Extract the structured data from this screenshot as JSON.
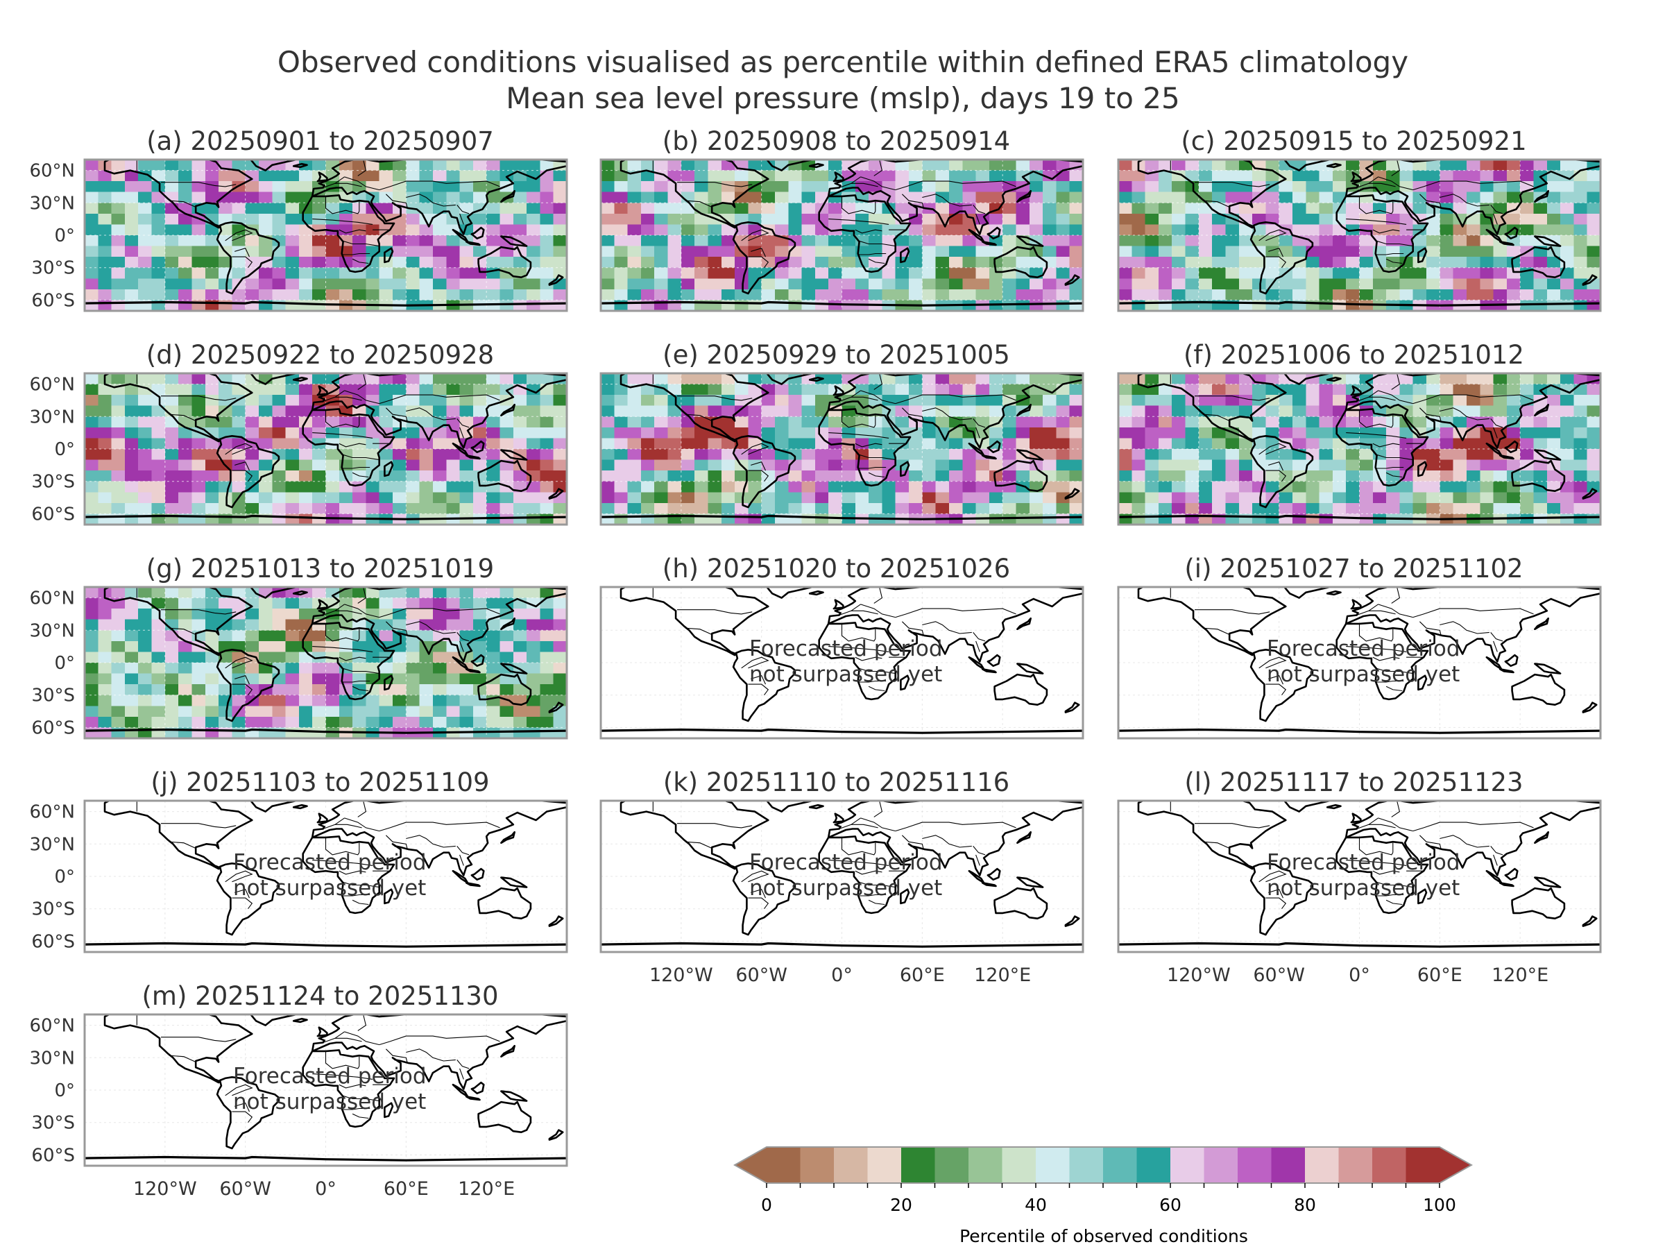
{
  "chart_data": {
    "type": "heatmap",
    "title": "Observed conditions visualised as percentile within defined ERA5 climatology",
    "subtitle": "Mean sea level pressure (mslp), days 19 to 25",
    "variable": "Mean sea level pressure (mslp)",
    "latitude_ticks": [
      "60°N",
      "30°N",
      "0°",
      "30°S",
      "60°S"
    ],
    "latitude_values": [
      60,
      30,
      0,
      -30,
      -60
    ],
    "longitude_ticks": [
      "120°W",
      "60°W",
      "0°",
      "60°E",
      "120°E"
    ],
    "longitude_values": [
      -120,
      -60,
      0,
      60,
      120
    ],
    "panels": [
      {
        "label": "(a) 20250901 to 20250907",
        "status": "observed",
        "dominant_percentile": "high (80-100) in southern Pacific, low (0-20) near 50°S"
      },
      {
        "label": "(b) 20250908 to 20250914",
        "status": "observed",
        "dominant_percentile": "high (80-100) over tropical Atlantic/Africa"
      },
      {
        "label": "(c) 20250915 to 20250921",
        "status": "observed",
        "dominant_percentile": "mixed, pink/magenta tropical band"
      },
      {
        "label": "(d) 20250922 to 20250928",
        "status": "observed",
        "dominant_percentile": "high (80-100) tropical band"
      },
      {
        "label": "(e) 20250929 to 20251005",
        "status": "observed",
        "dominant_percentile": "high (80-100) tropical Pacific/Atlantic"
      },
      {
        "label": "(f) 20251006 to 20251012",
        "status": "observed",
        "dominant_percentile": "high (80-100) widespread"
      },
      {
        "label": "(g) 20251013 to 20251019",
        "status": "observed",
        "dominant_percentile": "mixed, low-mid (20-60) tropics"
      },
      {
        "label": "(h) 20251020 to 20251026",
        "status": "forecast",
        "note": [
          "Forecasted period",
          "not surpassed yet"
        ]
      },
      {
        "label": "(i) 20251027 to 20251102",
        "status": "forecast",
        "note": [
          "Forecasted period",
          "not surpassed yet"
        ]
      },
      {
        "label": "(j) 20251103 to 20251109",
        "status": "forecast",
        "note": [
          "Forecasted period",
          "not surpassed yet"
        ]
      },
      {
        "label": "(k) 20251110 to 20251116",
        "status": "forecast",
        "note": [
          "Forecasted period",
          "not surpassed yet"
        ]
      },
      {
        "label": "(l) 20251117 to 20251123",
        "status": "forecast",
        "note": [
          "Forecasted period",
          "not surpassed yet"
        ]
      },
      {
        "label": "(m) 20251124 to 20251130",
        "status": "forecast",
        "note": [
          "Forecasted period",
          "not surpassed yet"
        ]
      }
    ],
    "colorbar": {
      "label": "Percentile of observed conditions",
      "range": [
        0,
        100
      ],
      "ticks": [
        0,
        20,
        40,
        60,
        80,
        100
      ],
      "extend": "both",
      "bin_width": 5,
      "colors": [
        "#a0694a",
        "#bc8c6f",
        "#d6b7a4",
        "#ecd9ce",
        "#2e8532",
        "#66a366",
        "#98c496",
        "#cde3ca",
        "#d0ebef",
        "#9ed4d2",
        "#5fbab6",
        "#27a29e",
        "#e8cce8",
        "#d39bd6",
        "#bd61c4",
        "#a036aa",
        "#ecd0d0",
        "#d69b9b",
        "#c06464",
        "#a23230"
      ]
    },
    "legend_position": "bottom-center"
  },
  "colors": {
    "land_outline": "#000000",
    "frame": "#999999",
    "text": "#333333"
  }
}
